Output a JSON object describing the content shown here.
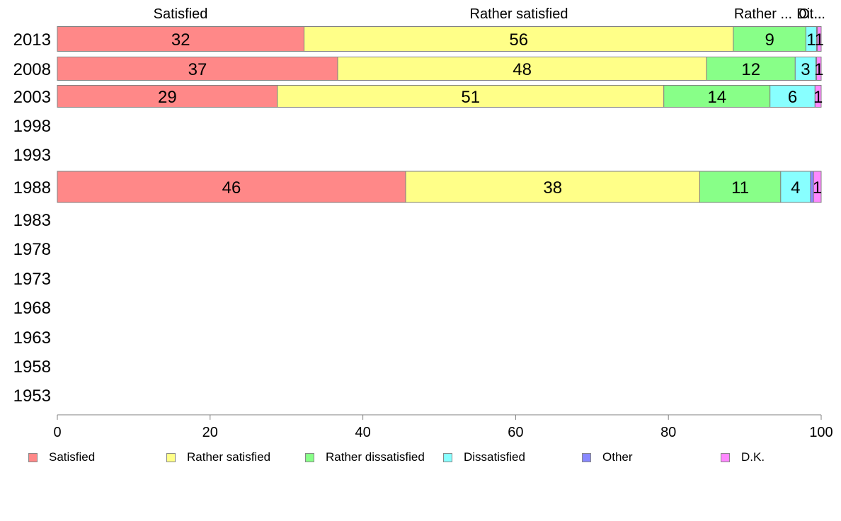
{
  "chart_data": {
    "type": "bar",
    "orientation": "horizontal",
    "stacked": true,
    "categories": [
      "2013",
      "2008",
      "2003",
      "1998",
      "1993",
      "1988",
      "1983",
      "1978",
      "1973",
      "1968",
      "1963",
      "1958",
      "1953"
    ],
    "series": [
      {
        "name": "Satisfied",
        "color": "#FF8888",
        "values": [
          32.3,
          36.7,
          28.8,
          null,
          null,
          45.6,
          null,
          null,
          null,
          null,
          null,
          null,
          null
        ],
        "labels": [
          "32",
          "37",
          "29",
          "",
          "",
          "46",
          "",
          "",
          "",
          "",
          "",
          "",
          ""
        ]
      },
      {
        "name": "Rather satisfied",
        "color": "#FFFF88",
        "values": [
          56.2,
          48.3,
          50.6,
          null,
          null,
          38.5,
          null,
          null,
          null,
          null,
          null,
          null,
          null
        ],
        "labels": [
          "56",
          "48",
          "51",
          "",
          "",
          "38",
          "",
          "",
          "",
          "",
          "",
          "",
          ""
        ]
      },
      {
        "name": "Rather dissatisfied",
        "color": "#88FF88",
        "values": [
          9.5,
          11.6,
          13.9,
          null,
          null,
          10.6,
          null,
          null,
          null,
          null,
          null,
          null,
          null
        ],
        "labels": [
          "9",
          "12",
          "14",
          "",
          "",
          "11",
          "",
          "",
          "",
          "",
          "",
          "",
          ""
        ]
      },
      {
        "name": "Dissatisfied",
        "color": "#88FFFF",
        "values": [
          1.4,
          2.7,
          5.9,
          null,
          null,
          3.9,
          null,
          null,
          null,
          null,
          null,
          null,
          null
        ],
        "labels": [
          "1",
          "3",
          "6",
          "",
          "",
          "4",
          "",
          "",
          "",
          "",
          "",
          "",
          ""
        ]
      },
      {
        "name": "Other",
        "color": "#8888FF",
        "values": [
          0.1,
          0.1,
          0.0,
          null,
          null,
          0.4,
          null,
          null,
          null,
          null,
          null,
          null,
          null
        ],
        "labels": [
          "",
          "",
          "",
          "",
          "",
          "",
          "",
          "",
          "",
          "",
          "",
          "",
          ""
        ]
      },
      {
        "name": "D.K.",
        "color": "#FF88FF",
        "values": [
          0.5,
          0.6,
          0.8,
          null,
          null,
          1.0,
          null,
          null,
          null,
          null,
          null,
          null,
          null
        ],
        "labels": [
          "1",
          "1",
          "1",
          "",
          "",
          "1",
          "",
          "",
          "",
          "",
          "",
          "",
          ""
        ]
      }
    ],
    "top_labels": [
      "Satisfied",
      "Rather satisfied",
      "Rather ...",
      "Di...",
      "Ot..."
    ],
    "xlim": [
      0,
      100
    ],
    "xticks": [
      0,
      20,
      40,
      60,
      80,
      100
    ],
    "grid": false,
    "legend_position": "bottom"
  }
}
